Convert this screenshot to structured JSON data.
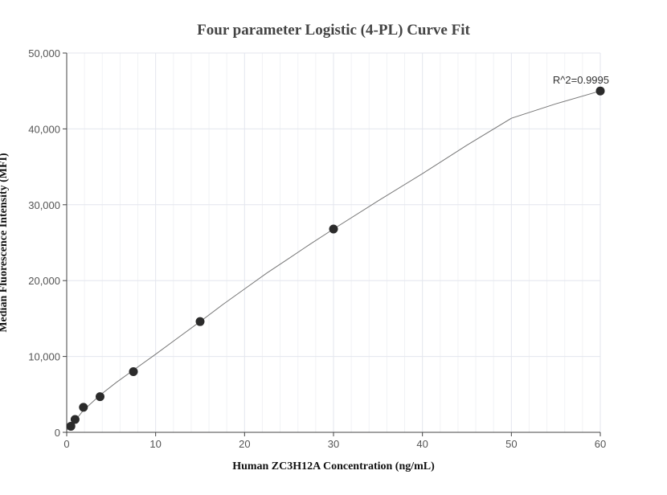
{
  "chart_data": {
    "type": "scatter",
    "title": "Four parameter Logistic (4-PL) Curve Fit",
    "xlabel": "Human ZC3H12A Concentration (ng/mL)",
    "ylabel": "Median Fluorescence Intensity (MFI)",
    "xlim": [
      0,
      60
    ],
    "ylim": [
      0,
      50000
    ],
    "x_ticks": [
      0,
      10,
      20,
      30,
      40,
      50,
      60
    ],
    "y_ticks": [
      0,
      10000,
      20000,
      30000,
      40000,
      50000
    ],
    "x_tick_labels": [
      "0",
      "10",
      "20",
      "30",
      "40",
      "50",
      "60"
    ],
    "y_tick_labels": [
      "0",
      "10,000",
      "20,000",
      "30,000",
      "40,000",
      "50,000"
    ],
    "grid": true,
    "marker_color": "#2b2b2b",
    "curve_color": "#777777",
    "series": [
      {
        "x": [
          0.47,
          0.94,
          1.88,
          3.75,
          7.5,
          15,
          30,
          60
        ],
        "y": [
          800,
          1700,
          3300,
          4700,
          8000,
          14600,
          26800,
          45000
        ]
      }
    ],
    "fit_curve": {
      "x": [
        0,
        0.47,
        0.94,
        1.88,
        3.75,
        5.6,
        7.5,
        10,
        12.5,
        15,
        17.5,
        20,
        22.5,
        25,
        27.5,
        30,
        35,
        40,
        45,
        50,
        55,
        60
      ],
      "y": [
        300,
        800,
        1550,
        2900,
        4900,
        6600,
        8200,
        10300,
        12450,
        14600,
        16800,
        18900,
        21000,
        22950,
        24900,
        26800,
        30500,
        34100,
        37850,
        41400,
        43300,
        45000
      ]
    },
    "annotations": [
      {
        "text": "R^2=0.9995",
        "x": 60,
        "y": 45000
      }
    ]
  }
}
